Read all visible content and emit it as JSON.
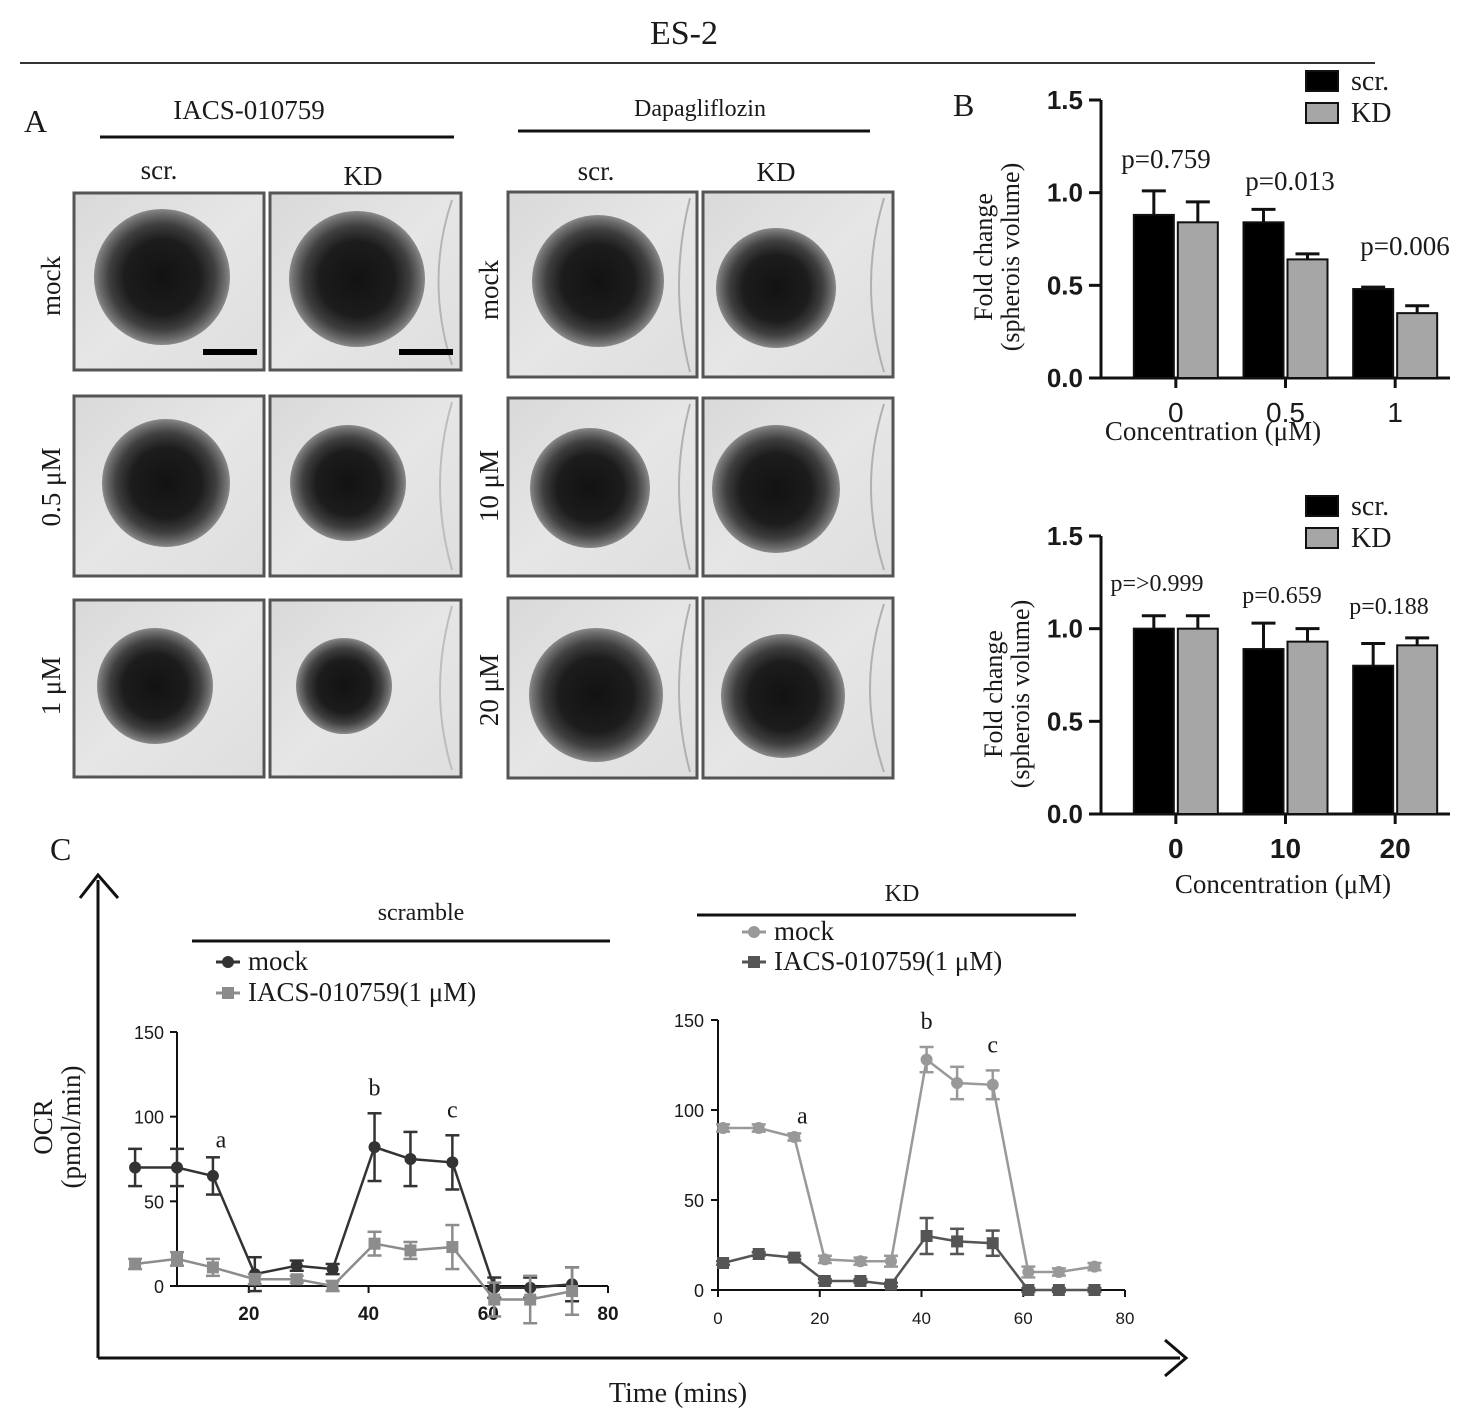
{
  "figure_title": "ES-2",
  "panel_a": {
    "label": "A",
    "groups": [
      {
        "title": "IACS-010759",
        "columns": [
          "scr.",
          "KD"
        ],
        "rows": [
          "mock",
          "0.5 μM",
          "1 μM"
        ]
      },
      {
        "title": "Dapagliflozin",
        "columns": [
          "scr.",
          "KD"
        ],
        "rows": [
          "mock",
          "10 μM",
          "20 μM"
        ]
      }
    ]
  },
  "panel_b_label": "B",
  "panel_c": {
    "label": "C",
    "x_title": "Time (mins)",
    "y_title_line1": "OCR",
    "y_title_line2": "(pmol/min)"
  },
  "chart_data": [
    {
      "type": "bar",
      "panel": "B",
      "categories": [
        "0",
        "0.5",
        "1"
      ],
      "series": [
        {
          "name": "scr.",
          "color": "#000000",
          "values": [
            0.88,
            0.84,
            0.48
          ],
          "errors": [
            0.13,
            0.07,
            0.01
          ]
        },
        {
          "name": "KD",
          "color": "#a6a6a6",
          "values": [
            0.84,
            0.64,
            0.35
          ],
          "errors": [
            0.11,
            0.03,
            0.04
          ]
        }
      ],
      "annotations": [
        "p=0.759",
        "p=0.013",
        "p=0.006"
      ],
      "xlabel": "Concentration (μM)",
      "ylabel_line1": "Fold change",
      "ylabel_line2": "(spherois volume)",
      "ylim": [
        0,
        1.5
      ],
      "yticks": [
        "0.0",
        "0.5",
        "1.0",
        "1.5"
      ],
      "legend": "top-right",
      "grid": false
    },
    {
      "type": "bar",
      "panel": "B",
      "categories": [
        "0",
        "10",
        "20"
      ],
      "series": [
        {
          "name": "scr.",
          "color": "#000000",
          "values": [
            1.0,
            0.89,
            0.8
          ],
          "errors": [
            0.07,
            0.14,
            0.12
          ]
        },
        {
          "name": "KD",
          "color": "#a6a6a6",
          "values": [
            1.0,
            0.93,
            0.91
          ],
          "errors": [
            0.07,
            0.07,
            0.04
          ]
        }
      ],
      "annotations": [
        "p=>0.999",
        "p=0.659",
        "p=0.188"
      ],
      "xlabel": "Concentration (μM)",
      "ylabel_line1": "Fold change",
      "ylabel_line2": "(spherois volume)",
      "ylim": [
        0,
        1.5
      ],
      "yticks": [
        "0.0",
        "0.5",
        "1.0",
        "1.5"
      ],
      "legend": "top-right",
      "grid": false
    },
    {
      "type": "line",
      "panel": "C",
      "title": "scramble",
      "xlim": [
        0,
        80
      ],
      "ylim": [
        0,
        150
      ],
      "xticks": [
        "20",
        "40",
        "60",
        "80"
      ],
      "yticks": [
        "0",
        "50",
        "100",
        "150"
      ],
      "series": [
        {
          "name": "mock",
          "color": "#333333",
          "marker": "circle",
          "x": [
            1,
            8,
            14,
            21,
            28,
            34,
            41,
            47,
            54,
            61,
            67,
            74
          ],
          "y": [
            70,
            70,
            65,
            7,
            12,
            10,
            82,
            75,
            73,
            -1,
            -1,
            1
          ],
          "errors": [
            11,
            11,
            11,
            10,
            3,
            3,
            20,
            16,
            16,
            6,
            6,
            10
          ]
        },
        {
          "name": "IACS-010759(1 μM)",
          "color": "#8c8c8c",
          "marker": "square",
          "x": [
            1,
            8,
            14,
            21,
            28,
            34,
            41,
            47,
            54,
            61,
            67,
            74
          ],
          "y": [
            13,
            16,
            11,
            4,
            4,
            0,
            25,
            21,
            23,
            -8,
            -8,
            -3
          ],
          "errors": [
            3,
            4,
            5,
            3,
            2,
            3,
            7,
            5,
            13,
            10,
            14,
            14
          ]
        }
      ],
      "point_labels": [
        {
          "series": 0,
          "index": 2,
          "text": "a"
        },
        {
          "series": 0,
          "index": 6,
          "text": "b"
        },
        {
          "series": 0,
          "index": 8,
          "text": "c"
        }
      ],
      "legend": "top-left",
      "grid": false
    },
    {
      "type": "line",
      "panel": "C",
      "title": "KD",
      "xlim": [
        0,
        80
      ],
      "ylim": [
        0,
        150
      ],
      "xticks": [
        "0",
        "20",
        "40",
        "60",
        "80"
      ],
      "yticks": [
        "0",
        "50",
        "100",
        "150"
      ],
      "series": [
        {
          "name": "mock",
          "color": "#999999",
          "marker": "circle",
          "x": [
            1,
            8,
            15,
            21,
            28,
            34,
            41,
            47,
            54,
            61,
            67,
            74
          ],
          "y": [
            90,
            90,
            85,
            17,
            16,
            16,
            128,
            115,
            114,
            10,
            10,
            13
          ],
          "errors": [
            2,
            2,
            2,
            2,
            2,
            3,
            7,
            9,
            8,
            3,
            2,
            2
          ]
        },
        {
          "name": "IACS-010759(1 μM)",
          "color": "#555555",
          "marker": "square",
          "x": [
            1,
            8,
            15,
            21,
            28,
            34,
            41,
            47,
            54,
            61,
            67,
            74
          ],
          "y": [
            15,
            20,
            18,
            5,
            5,
            3,
            30,
            27,
            26,
            0,
            0,
            0
          ],
          "errors": [
            1,
            1,
            1,
            1,
            1,
            1,
            10,
            7,
            7,
            1,
            1,
            1
          ]
        }
      ],
      "point_labels": [
        {
          "series": 0,
          "index": 2,
          "text": "a"
        },
        {
          "series": 0,
          "index": 6,
          "text": "b"
        },
        {
          "series": 0,
          "index": 8,
          "text": "c"
        }
      ],
      "legend": "top-left",
      "grid": false
    }
  ]
}
